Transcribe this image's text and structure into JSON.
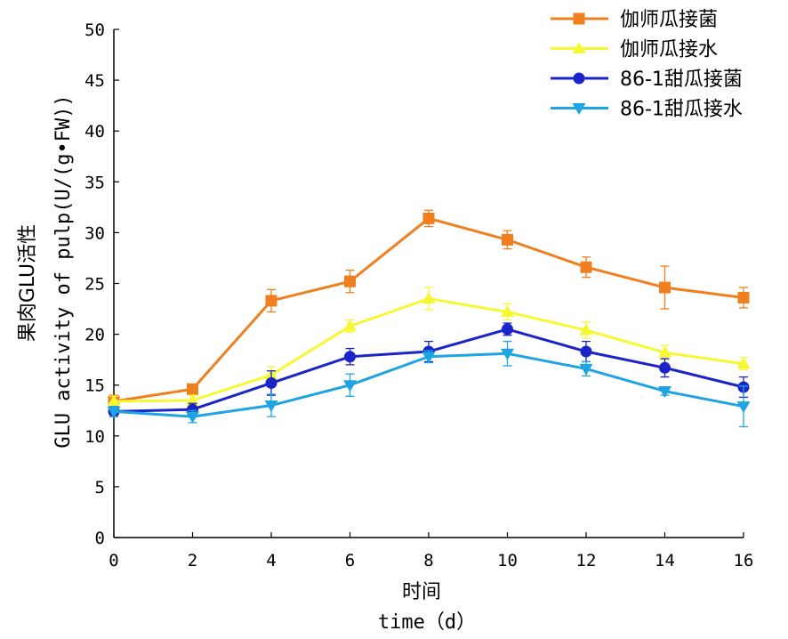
{
  "chart_data": {
    "type": "line",
    "title": "",
    "xlabel_cn": "时间",
    "xlabel_en": "time（d）",
    "ylabel": "果肉GLU活性 GLU activity of pulp(U/(g•FW))",
    "ylabel_cn": "果肉GLU活性",
    "ylabel_en": "GLU activity of pulp(U/(g•FW))",
    "xlim": [
      0,
      16
    ],
    "ylim": [
      0,
      50
    ],
    "x": [
      0,
      2,
      4,
      6,
      8,
      10,
      12,
      14,
      16
    ],
    "x_tick_labels": [
      "0",
      "2",
      "4",
      "6",
      "8",
      "10",
      "12",
      "14",
      "16"
    ],
    "y_tick_labels": [
      "0",
      "5",
      "10",
      "15",
      "20",
      "25",
      "30",
      "35",
      "40",
      "45",
      "50"
    ],
    "grid": false,
    "legend_position": "top-right",
    "series": [
      {
        "name": "伽师瓜接菌",
        "color": "#f07f1f",
        "marker": "square",
        "values": [
          13.4,
          14.6,
          23.3,
          25.2,
          31.4,
          29.3,
          26.6,
          24.6,
          23.6
        ],
        "errors": [
          0.6,
          0.5,
          1.1,
          1.1,
          0.8,
          0.9,
          1.0,
          2.1,
          1.0
        ]
      },
      {
        "name": "伽师瓜接水",
        "color": "#f7f733",
        "marker": "triangle-up",
        "values": [
          13.4,
          13.5,
          16.0,
          20.8,
          23.5,
          22.2,
          20.4,
          18.2,
          17.1
        ],
        "errors": [
          0.5,
          0.5,
          0.8,
          0.6,
          1.1,
          0.8,
          0.8,
          0.7,
          0.6
        ]
      },
      {
        "name": "86-1甜瓜接菌",
        "color": "#1a24c8",
        "marker": "circle",
        "values": [
          12.4,
          12.6,
          15.2,
          17.8,
          18.3,
          20.5,
          18.3,
          16.7,
          14.8
        ],
        "errors": [
          0.5,
          0.6,
          1.2,
          0.8,
          1.0,
          0.6,
          1.0,
          0.9,
          1.0
        ]
      },
      {
        "name": "86-1甜瓜接水",
        "color": "#1ea3e3",
        "marker": "triangle-down",
        "values": [
          12.4,
          11.9,
          13.0,
          15.0,
          17.8,
          18.1,
          16.6,
          14.4,
          12.9
        ],
        "errors": [
          0.5,
          0.6,
          1.1,
          1.1,
          0.6,
          1.2,
          0.7,
          0.4,
          2.0
        ]
      }
    ]
  }
}
